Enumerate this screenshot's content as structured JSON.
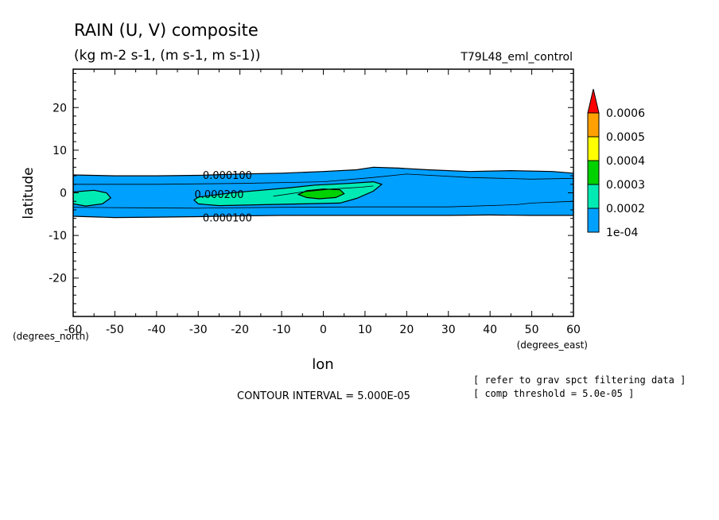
{
  "chart_data": {
    "type": "heatmap",
    "title": "RAIN (U, V) composite",
    "subtitle": "(kg m-2 s-1, (m s-1, m s-1))",
    "run_label": "T79L48_eml_control",
    "xlabel": "lon",
    "ylabel": "latitude",
    "x_unit_label": "(degrees_east)",
    "y_unit_label": "(degrees_north)",
    "xlim": [
      -60,
      60
    ],
    "ylim": [
      -29,
      29
    ],
    "x_ticks": [
      -60,
      -50,
      -40,
      -30,
      -20,
      -10,
      0,
      10,
      20,
      30,
      40,
      50,
      60
    ],
    "x_tick_labels": [
      "-60",
      "-50",
      "-40",
      "-30",
      "-20",
      "-10",
      "0",
      "10",
      "20",
      "30",
      "40",
      "50",
      "60"
    ],
    "y_ticks": [
      -20,
      -10,
      0,
      10,
      20
    ],
    "y_tick_labels": [
      "-20",
      "-10",
      "0",
      "10",
      "20"
    ],
    "contour_interval_text": "CONTOUR INTERVAL = 5.000E-05",
    "notes": [
      "[ refer to grav spct filtering data ]",
      "[ comp threshold = 5.0e-05 ]"
    ],
    "colorbar": {
      "levels": [
        0.0001,
        0.0002,
        0.0003,
        0.0004,
        0.0005,
        0.0006
      ],
      "labels": [
        "1e-04",
        "0.0002",
        "0.0003",
        "0.0004",
        "0.0005",
        "0.0006"
      ],
      "colors": [
        "#00a0ff",
        "#00ebb4",
        "#00d200",
        "#ffff00",
        "#ffa000",
        "#ff0000"
      ]
    },
    "contour_labels": [
      {
        "text": "0.000100",
        "lon": -23,
        "lat": 4.2
      },
      {
        "text": "0.000200",
        "lon": -25,
        "lat": -0.3
      },
      {
        "text": "0.000100",
        "lon": -23,
        "lat": -5.8
      }
    ],
    "regions": [
      {
        "level": 0.0001,
        "color": "#00a0ff",
        "points": [
          [
            -60,
            4.2
          ],
          [
            -50,
            4.0
          ],
          [
            -40,
            4.0
          ],
          [
            -30,
            4.1
          ],
          [
            -20,
            4.4
          ],
          [
            -10,
            4.6
          ],
          [
            0,
            5.0
          ],
          [
            8,
            5.4
          ],
          [
            12,
            6.0
          ],
          [
            18,
            5.8
          ],
          [
            25,
            5.4
          ],
          [
            35,
            5.0
          ],
          [
            45,
            5.2
          ],
          [
            55,
            5.0
          ],
          [
            60,
            4.6
          ],
          [
            60,
            -5.3
          ],
          [
            50,
            -5.3
          ],
          [
            40,
            -5.2
          ],
          [
            30,
            -5.3
          ],
          [
            20,
            -5.3
          ],
          [
            10,
            -5.3
          ],
          [
            0,
            -5.3
          ],
          [
            -10,
            -5.3
          ],
          [
            -20,
            -5.4
          ],
          [
            -30,
            -5.6
          ],
          [
            -40,
            -5.7
          ],
          [
            -50,
            -5.8
          ],
          [
            -60,
            -5.5
          ]
        ]
      },
      {
        "level": 0.00015,
        "color": "#00ebb4",
        "points": [
          [
            -60,
            0.2
          ],
          [
            -55,
            0.6
          ],
          [
            -52,
            0.0
          ],
          [
            -51,
            -1.2
          ],
          [
            -53,
            -2.6
          ],
          [
            -57,
            -3.1
          ],
          [
            -60,
            -2.6
          ]
        ]
      },
      {
        "level": 0.00015,
        "color": "#00ebb4",
        "points": [
          [
            -30,
            -1.0
          ],
          [
            -22,
            0.0
          ],
          [
            -15,
            0.6
          ],
          [
            -8,
            1.2
          ],
          [
            -2,
            1.8
          ],
          [
            6,
            2.2
          ],
          [
            12,
            2.6
          ],
          [
            14,
            2.0
          ],
          [
            12,
            0.4
          ],
          [
            8,
            -1.3
          ],
          [
            4,
            -2.4
          ],
          [
            -5,
            -2.6
          ],
          [
            -15,
            -2.8
          ],
          [
            -25,
            -3.0
          ],
          [
            -30,
            -2.6
          ],
          [
            -31,
            -1.7
          ]
        ]
      },
      {
        "level": 0.0003,
        "color": "#00d200",
        "points": [
          [
            -6,
            -0.4
          ],
          [
            -4,
            0.5
          ],
          [
            0,
            0.9
          ],
          [
            4,
            0.7
          ],
          [
            5,
            -0.2
          ],
          [
            3,
            -1.1
          ],
          [
            -1,
            -1.4
          ],
          [
            -4,
            -1.1
          ]
        ]
      }
    ]
  }
}
